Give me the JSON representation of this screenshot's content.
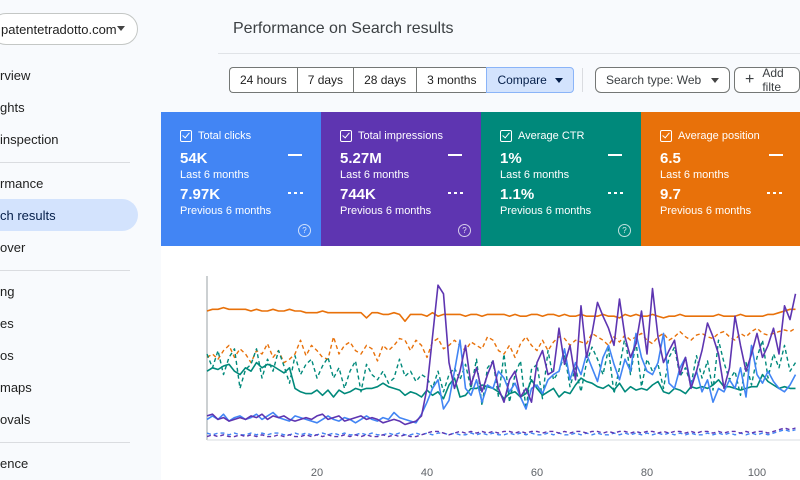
{
  "sidebar": {
    "property": "patentetradotto.com",
    "items": [
      {
        "label": "rview",
        "active": false
      },
      {
        "label": "ghts",
        "active": false
      },
      {
        "label": "inspection",
        "active": false
      },
      {
        "label": "rmance",
        "active": false
      },
      {
        "label": "ch results",
        "active": true
      },
      {
        "label": "over",
        "active": false
      },
      {
        "label": "ng",
        "active": false
      },
      {
        "label": "es",
        "active": false
      },
      {
        "label": "os",
        "active": false
      },
      {
        "label": "maps",
        "active": false
      },
      {
        "label": "ovals",
        "active": false
      },
      {
        "label": "ence",
        "active": false
      }
    ]
  },
  "header": {
    "title": "Performance on Search results"
  },
  "filters": {
    "ranges": [
      "24 hours",
      "7 days",
      "28 days",
      "3 months"
    ],
    "compare": "Compare",
    "search_type": "Search type: Web",
    "add_filter": "Add filte"
  },
  "cards": [
    {
      "label": "Total clicks",
      "value": "54K",
      "period": "Last 6 months",
      "prev_value": "7.97K",
      "prev_period": "Previous 6 months",
      "color": "#4285f4"
    },
    {
      "label": "Total impressions",
      "value": "5.27M",
      "period": "Last 6 months",
      "prev_value": "744K",
      "prev_period": "Previous 6 months",
      "color": "#5e35b1"
    },
    {
      "label": "Average CTR",
      "value": "1%",
      "period": "Last 6 months",
      "prev_value": "1.1%",
      "prev_period": "Previous 6 months",
      "color": "#00897b"
    },
    {
      "label": "Average position",
      "value": "6.5",
      "period": "Last 6 months",
      "prev_value": "9.7",
      "prev_period": "Previous 6 months",
      "color": "#e8710a"
    }
  ],
  "chart_data": {
    "type": "line",
    "x_ticks": [
      20,
      40,
      60,
      80,
      100
    ],
    "xlim": [
      0,
      108
    ],
    "ylim": [
      0,
      100
    ],
    "grid": false,
    "series": [
      {
        "color": "#e8710a",
        "style": "solid",
        "values": [
          75,
          76,
          76,
          77,
          76,
          76,
          76,
          76,
          75,
          76,
          75,
          75,
          76,
          75,
          75,
          76,
          75,
          75,
          74,
          74,
          74,
          75,
          74,
          74,
          74,
          74,
          74,
          74,
          74,
          71,
          74,
          74,
          73,
          73,
          74,
          73,
          69,
          73,
          73,
          73,
          72,
          74,
          72,
          73,
          73,
          73,
          73,
          72,
          73,
          73,
          72,
          73,
          73,
          73,
          73,
          72,
          73,
          72,
          72,
          73,
          73,
          72,
          73,
          73,
          72,
          73,
          72,
          72,
          73,
          72,
          72,
          72,
          73,
          72,
          72,
          71,
          73,
          72,
          73,
          72,
          72,
          73,
          72,
          71,
          72,
          72,
          73,
          72,
          72,
          72,
          72,
          72,
          72,
          73,
          72,
          72,
          72,
          73,
          72,
          72,
          72,
          72,
          73,
          73,
          74,
          75,
          76,
          76
        ]
      },
      {
        "color": "#e8710a",
        "style": "dashed",
        "values": [
          48,
          50,
          47,
          52,
          55,
          48,
          53,
          50,
          45,
          52,
          50,
          56,
          48,
          52,
          45,
          47,
          50,
          58,
          49,
          55,
          52,
          48,
          47,
          60,
          50,
          55,
          57,
          52,
          50,
          55,
          53,
          46,
          55,
          52,
          55,
          59,
          58,
          52,
          58,
          55,
          48,
          57,
          59,
          53,
          55,
          58,
          55,
          52,
          57,
          55,
          53,
          60,
          58,
          52,
          50,
          55,
          48,
          56,
          60,
          55,
          52,
          58,
          52,
          57,
          60,
          59,
          55,
          58,
          57,
          56,
          62,
          60,
          58,
          55,
          60,
          57,
          61,
          58,
          60,
          62,
          58,
          56,
          60,
          62,
          58,
          60,
          63,
          60,
          58,
          61,
          62,
          60,
          59,
          62,
          63,
          60,
          58,
          62,
          60,
          63,
          65,
          62,
          61,
          62,
          63,
          64,
          63,
          65
        ]
      },
      {
        "color": "#00897b",
        "style": "solid",
        "values": [
          40,
          42,
          41,
          43,
          44,
          40,
          38,
          42,
          40,
          45,
          42,
          44,
          43,
          41,
          39,
          42,
          30,
          28,
          27,
          27,
          29,
          26,
          29,
          25,
          29,
          27,
          28,
          30,
          29,
          30,
          30,
          31,
          33,
          31,
          30,
          29,
          26,
          28,
          27,
          25,
          29,
          26,
          28,
          24,
          32,
          36,
          25,
          26,
          30,
          30,
          32,
          31,
          30,
          28,
          24,
          27,
          28,
          25,
          27,
          35,
          30,
          26,
          28,
          30,
          25,
          28,
          27,
          32,
          36,
          34,
          33,
          31,
          30,
          32,
          29,
          33,
          28,
          31,
          29,
          30,
          29,
          32,
          34,
          28,
          27,
          30,
          29,
          27,
          31,
          30,
          31,
          30,
          32,
          35,
          31,
          31,
          30,
          29,
          30,
          31,
          31,
          38,
          34,
          32,
          30,
          31,
          30,
          30
        ]
      },
      {
        "color": "#00897b",
        "style": "dashed",
        "values": [
          50,
          42,
          52,
          38,
          48,
          53,
          30,
          41,
          44,
          53,
          36,
          47,
          40,
          52,
          43,
          33,
          49,
          38,
          44,
          47,
          36,
          43,
          48,
          36,
          42,
          30,
          40,
          46,
          28,
          44,
          38,
          35,
          40,
          33,
          36,
          47,
          37,
          40,
          34,
          38,
          36,
          30,
          40,
          28,
          38,
          42,
          35,
          44,
          30,
          47,
          20,
          42,
          46,
          25,
          50,
          22,
          38,
          46,
          18,
          41,
          44,
          24,
          52,
          35,
          40,
          50,
          31,
          42,
          28,
          45,
          54,
          47,
          38,
          53,
          27,
          42,
          60,
          38,
          57,
          31,
          47,
          40,
          44,
          30,
          48,
          54,
          37,
          42,
          32,
          49,
          36,
          46,
          29,
          58,
          45,
          35,
          40,
          26,
          45,
          32,
          48,
          58,
          36,
          50,
          42,
          55,
          40,
          45
        ]
      },
      {
        "color": "#4285f4",
        "style": "solid",
        "values": [
          12,
          14,
          12,
          15,
          11,
          13,
          14,
          12,
          13,
          15,
          12,
          14,
          16,
          13,
          12,
          11,
          14,
          13,
          12,
          11,
          10,
          12,
          14,
          12,
          11,
          13,
          12,
          10,
          12,
          14,
          12,
          11,
          13,
          12,
          16,
          13,
          12,
          11,
          10,
          15,
          22,
          30,
          35,
          18,
          23,
          40,
          58,
          30,
          26,
          35,
          22,
          32,
          30,
          40,
          36,
          28,
          33,
          25,
          18,
          30,
          32,
          27,
          35,
          38,
          40,
          53,
          35,
          45,
          38,
          50,
          42,
          34,
          48,
          55,
          44,
          35,
          47,
          40,
          62,
          48,
          40,
          38,
          45,
          62,
          33,
          30,
          42,
          48,
          32,
          40,
          28,
          35,
          22,
          30,
          28,
          35,
          30,
          42,
          25,
          55,
          38,
          33,
          40,
          34,
          30,
          28,
          32,
          38
        ]
      },
      {
        "color": "#4285f4",
        "style": "dashed",
        "values": [
          4,
          3,
          4,
          4,
          3,
          4,
          3,
          3,
          4,
          3,
          4,
          3,
          4,
          4,
          3,
          3,
          4,
          3,
          4,
          3,
          3,
          4,
          3,
          4,
          3,
          4,
          3,
          3,
          4,
          3,
          4,
          3,
          3,
          4,
          3,
          4,
          3,
          3,
          4,
          3,
          4,
          3,
          4,
          4,
          3,
          4,
          3,
          3,
          4,
          3,
          4,
          3,
          4,
          3,
          3,
          4,
          3,
          4,
          3,
          4,
          3,
          3,
          4,
          3,
          4,
          3,
          3,
          4,
          3,
          4,
          3,
          4,
          3,
          3,
          4,
          3,
          4,
          3,
          4,
          3,
          4,
          3,
          4,
          3,
          4,
          3,
          4,
          3,
          4,
          3,
          3,
          4,
          3,
          4,
          3,
          4,
          3,
          4,
          3,
          4,
          3,
          4,
          3,
          4,
          5,
          6,
          5,
          6
        ]
      },
      {
        "color": "#5e35b1",
        "style": "solid",
        "values": [
          14,
          15,
          12,
          13,
          11,
          12,
          13,
          12,
          14,
          13,
          15,
          12,
          14,
          13,
          14,
          12,
          11,
          12,
          13,
          12,
          14,
          15,
          12,
          13,
          14,
          11,
          12,
          13,
          14,
          12,
          13,
          12,
          10,
          11,
          12,
          11,
          9,
          10,
          11,
          14,
          30,
          60,
          90,
          85,
          45,
          30,
          40,
          55,
          32,
          42,
          28,
          38,
          46,
          30,
          22,
          35,
          40,
          25,
          30,
          22,
          45,
          52,
          38,
          40,
          65,
          44,
          55,
          35,
          78,
          48,
          62,
          80,
          72,
          65,
          55,
          82,
          60,
          48,
          56,
          75,
          50,
          88,
          60,
          45,
          52,
          58,
          38,
          48,
          30,
          40,
          52,
          68,
          60,
          50,
          30,
          42,
          72,
          55,
          40,
          50,
          62,
          48,
          55,
          65,
          50,
          78,
          70,
          85
        ]
      },
      {
        "color": "#5e35b1",
        "style": "dashed",
        "values": [
          2,
          3,
          2,
          3,
          2,
          2,
          3,
          2,
          3,
          2,
          3,
          2,
          2,
          3,
          2,
          3,
          2,
          2,
          3,
          2,
          3,
          2,
          3,
          2,
          2,
          3,
          2,
          3,
          2,
          3,
          2,
          2,
          3,
          2,
          3,
          2,
          3,
          2,
          2,
          3,
          4,
          5,
          5,
          4,
          3,
          4,
          5,
          4,
          5,
          4,
          5,
          4,
          5,
          4,
          5,
          5,
          4,
          5,
          4,
          5,
          5,
          4,
          5,
          5,
          4,
          5,
          4,
          5,
          5,
          4,
          5,
          5,
          4,
          5,
          4,
          5,
          5,
          4,
          5,
          4,
          5,
          5,
          4,
          5,
          4,
          5,
          5,
          4,
          5,
          4,
          5,
          5,
          4,
          5,
          4,
          5,
          5,
          4,
          5,
          4,
          5,
          5,
          4,
          5,
          6,
          7,
          6,
          7
        ]
      }
    ]
  }
}
